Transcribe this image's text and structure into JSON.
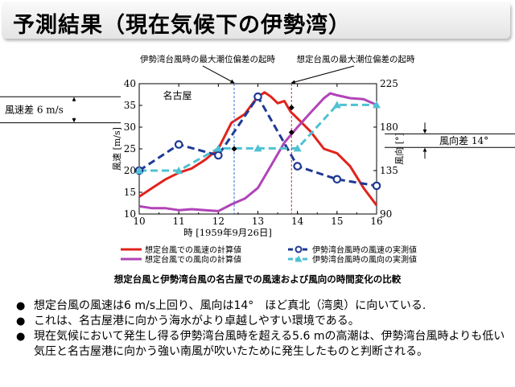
{
  "slide": {
    "title": "予測結果（現在気候下の伊勢湾）",
    "caption": "想定台風と伊勢湾台風の名古屋での風速および風向の時間変化の比較",
    "bullets": [
      "想定台風の風速は6 m/s上回り、風向は14°　ほど真北（湾奥）に向いている.",
      "これは、名古屋港に向かう海水がより卓越しやすい環境である。",
      "現在気候において発生し得る伊勢湾台風時を超える5.6 mの高潮は、伊勢湾台風時よりも低い気圧と名古屋港に向かう強い南風が吹いたために発生したものと判断される。"
    ]
  },
  "chart_data": {
    "type": "line",
    "station_label": "名古屋",
    "xlabel": "時 [1959年9月26日]",
    "ylabel_left": "風速 [m/s]",
    "ylabel_right": "風向 [°]",
    "xlim": [
      10,
      16
    ],
    "ylim_left": [
      10,
      40
    ],
    "ylim_right": [
      90,
      225
    ],
    "x_ticks": [
      "10",
      "11",
      "12",
      "13",
      "14",
      "15",
      "16"
    ],
    "y_ticks_left": [
      "10",
      "15",
      "20",
      "25",
      "30",
      "35",
      "40"
    ],
    "y_ticks_right": [
      "90",
      "135",
      "180",
      "225"
    ],
    "annotations": {
      "isewan_peak_label": "伊勢湾台風時の最大潮位偏差の起時",
      "assumed_peak_label": "想定台風の最大潮位偏差の起時",
      "isewan_peak_time": 12.4,
      "assumed_peak_time": 13.85,
      "speed_diff_label": "風速差 6 m/s",
      "dir_diff_label": "風向差 14°"
    },
    "series": [
      {
        "name": "想定台風での風速の計算値",
        "axis": "left",
        "color": "#e0231b",
        "style": "solid",
        "x": [
          10,
          10.33,
          10.67,
          11,
          11.33,
          11.67,
          12,
          12.33,
          12.67,
          12.83,
          13,
          13.17,
          13.33,
          13.5,
          13.67,
          13.83,
          14,
          14.33,
          14.67,
          15,
          15.33,
          15.67,
          16
        ],
        "y": [
          14,
          16,
          18,
          19.5,
          20.5,
          22.5,
          25,
          31,
          33,
          35,
          37,
          38,
          37,
          35.5,
          36,
          33.5,
          32,
          29,
          25,
          24,
          21,
          16,
          12
        ]
      },
      {
        "name": "想定台風での風向の計算値",
        "axis": "right",
        "color": "#b044b8",
        "style": "solid",
        "x": [
          10,
          10.33,
          10.67,
          11,
          11.33,
          11.67,
          12,
          12.33,
          12.67,
          13,
          13.33,
          13.67,
          14,
          14.33,
          14.67,
          14.83,
          15,
          15.33,
          15.67,
          16
        ],
        "y": [
          98,
          96,
          96,
          94,
          95,
          94,
          93,
          100,
          106,
          117,
          140,
          164,
          180,
          195,
          210,
          215,
          213,
          210,
          209,
          203
        ]
      },
      {
        "name": "伊勢湾台風時の風速の実測値",
        "axis": "left",
        "color": "#1f3a93",
        "style": "dashed",
        "x": [
          10,
          11,
          12,
          13,
          14,
          15,
          16
        ],
        "y": [
          20,
          26,
          23.5,
          37,
          21,
          18,
          16.5
        ]
      },
      {
        "name": "伊勢湾台風時の風向の実測値",
        "axis": "right",
        "color": "#4fc1d3",
        "style": "dashed",
        "x": [
          10,
          11,
          12,
          13,
          14,
          15,
          16
        ],
        "y": [
          135,
          135,
          158,
          158,
          158,
          203,
          203
        ]
      }
    ]
  }
}
